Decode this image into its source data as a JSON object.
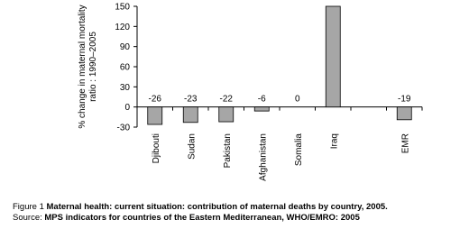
{
  "chart_data": {
    "type": "bar",
    "y_label": [
      "% change in maternal mortality",
      "ratio : 1990–2005"
    ],
    "categories": [
      "Djibouti",
      "Sudan",
      "Pakistan",
      "Afghanistan",
      "Somalia",
      "Iraq",
      null,
      "EMR"
    ],
    "values": [
      -26,
      -23,
      -22,
      -6,
      0,
      150,
      null,
      -19
    ],
    "value_labels": [
      "-26",
      "-23",
      "-22",
      "-6",
      "0",
      null,
      null,
      "-19"
    ],
    "color": "#a6a6a6",
    "ylim": [
      -30,
      150
    ],
    "yticks": [
      -30,
      0,
      30,
      60,
      90,
      120,
      150
    ],
    "grid": false
  },
  "caption": {
    "line1_prefix": "Figure 1 ",
    "line1_bold": "Maternal health: current situation: contribution of maternal deaths by country, 2005.",
    "line2_prefix": "Source: ",
    "line2_bold": "MPS indicators for countries of the Eastern Mediterranean, WHO/EMRO: 2005"
  }
}
